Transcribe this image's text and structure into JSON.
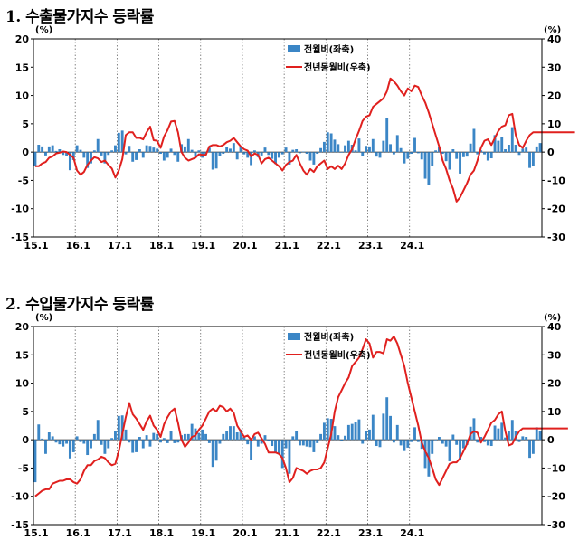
{
  "panels": [
    {
      "title": "1. 수출물가지수 등락률",
      "chart_data": {
        "type": "bar+line",
        "y_left_unit": "(%)",
        "y_right_unit": "(%)",
        "y_left_lim": [
          -15,
          20
        ],
        "y_right_lim": [
          -30,
          40
        ],
        "y_left_ticks": [
          20,
          15,
          10,
          5,
          0,
          -5,
          -10,
          -15
        ],
        "y_right_ticks": [
          40,
          30,
          20,
          10,
          0,
          -10,
          -20,
          -30
        ],
        "x_tick_labels": [
          "15.1",
          "16.1",
          "17.1",
          "18.1",
          "19.1",
          "20.1",
          "21.1",
          "22.1",
          "23.1",
          "24.1"
        ],
        "legend_placement": "top-center",
        "series": [
          {
            "name": "전월비(좌축)",
            "kind": "bar",
            "axis": "left",
            "color": "#3b86c6",
            "values": [
              -2.5,
              1.3,
              1.0,
              -0.6,
              1.0,
              1.2,
              0.2,
              0.5,
              -0.5,
              -0.7,
              -3.2,
              -1.4,
              1.2,
              0.4,
              -1.0,
              -2.8,
              -2.0,
              0.3,
              2.3,
              -0.6,
              -2.0,
              -0.5,
              0.3,
              1.2,
              3.4,
              3.8,
              -0.4,
              1.1,
              -1.7,
              -1.4,
              0.5,
              -1.0,
              1.2,
              1.1,
              0.8,
              0.6,
              -0.3,
              -1.5,
              -1.0,
              0.6,
              -0.5,
              -1.7,
              1.4,
              1.0,
              2.3,
              0.4,
              -0.9,
              0.3,
              -1.0,
              -0.5,
              0.8,
              -3.1,
              -2.9,
              -0.7,
              -0.3,
              0.9,
              0.6,
              1.6,
              -1.3,
              1.0,
              -0.4,
              -1.0,
              -2.3,
              0.3,
              -0.9,
              -0.6,
              0.8,
              -0.5,
              -1.2,
              -2.1,
              -1.0,
              -0.4,
              0.8,
              -2.2,
              0.4,
              0.5,
              -0.2,
              0.1,
              -0.3,
              -1.5,
              -2.2,
              -0.3,
              0.7,
              1.8,
              3.5,
              3.3,
              2.2,
              1.4,
              -0.1,
              1.2,
              2.0,
              1.3,
              0.3,
              2.4,
              -0.7,
              1.1,
              1.0,
              2.3,
              -0.8,
              -1.0,
              2.0,
              6.0,
              1.4,
              -0.4,
              3.0,
              0.7,
              -2.0,
              -1.2,
              -0.3,
              2.5,
              -0.2,
              -1.3,
              -4.7,
              -5.8,
              -2.4,
              0.3,
              0.9,
              -0.3,
              -1.6,
              -3.1,
              0.5,
              -1.2,
              -3.8,
              -0.9,
              -0.8,
              1.5,
              4.1,
              -0.4,
              0.3,
              -0.4,
              -1.5,
              -1.1,
              3.0,
              2.0,
              2.6,
              0.5,
              1.3,
              4.4,
              1.3,
              -0.5,
              0.6,
              0.8,
              -2.8,
              -2.4,
              1.0,
              1.6
            ]
          },
          {
            "name": "전년동월비(우축)",
            "kind": "line",
            "axis": "right",
            "color": "#e0201e",
            "values": [
              -5.0,
              -5.0,
              -4.0,
              -3.5,
              -2.0,
              -1.5,
              -0.5,
              -0.2,
              0.2,
              0.0,
              -1.0,
              -2.0,
              -6.5,
              -8.0,
              -7.0,
              -4.5,
              -3.0,
              -1.8,
              -2.2,
              -3.5,
              -3.0,
              -4.5,
              -5.8,
              -9.0,
              -6.5,
              -2.5,
              6.0,
              7.0,
              7.0,
              5.0,
              5.0,
              4.5,
              7.0,
              9.0,
              4.2,
              4.0,
              1.5,
              5.5,
              7.8,
              10.8,
              11.0,
              7.0,
              0.0,
              -2.0,
              -3.0,
              -2.5,
              -2.0,
              -0.8,
              -1.0,
              -1.0,
              2.0,
              2.5,
              2.5,
              2.0,
              2.5,
              3.5,
              4.0,
              5.0,
              3.5,
              2.0,
              1.0,
              0.5,
              -1.5,
              -0.5,
              -1.0,
              -4.0,
              -2.5,
              -2.0,
              -3.0,
              -4.0,
              -5.0,
              -6.5,
              -4.5,
              -3.5,
              -3.0,
              -1.0,
              -4.0,
              -6.5,
              -8.0,
              -6.0,
              -7.0,
              -5.0,
              -4.0,
              -3.0,
              -6.0,
              -5.0,
              -6.0,
              -4.8,
              -6.0,
              -4.0,
              -1.0,
              1.0,
              4.5,
              7.5,
              11.0,
              12.5,
              13.0,
              16.0,
              17.0,
              18.0,
              19.0,
              21.5,
              26.0,
              25.0,
              23.5,
              21.5,
              20.0,
              22.5,
              21.5,
              23.5,
              23.0,
              20.0,
              17.5,
              14.0,
              10.0,
              6.0,
              2.0,
              -3.0,
              -6.0,
              -10.0,
              -13.0,
              -17.5,
              -16.0,
              -13.5,
              -11.0,
              -8.0,
              -6.5,
              -3.0,
              1.5,
              4.0,
              4.5,
              2.5,
              5.0,
              7.5,
              9.0,
              9.5,
              13.0,
              13.5,
              6.0,
              2.5,
              1.5,
              4.0,
              6.0,
              7.0,
              7.0,
              7.0,
              7.0,
              7.0,
              7.0,
              7.0,
              7.0,
              7.0,
              7.0,
              7.0,
              7.0,
              7.0
            ]
          }
        ]
      }
    },
    {
      "title": "2. 수입물가지수 등락률",
      "chart_data": {
        "type": "bar+line",
        "y_left_unit": "(%)",
        "y_right_unit": "(%)",
        "y_left_lim": [
          -15,
          20
        ],
        "y_right_lim": [
          -30,
          40
        ],
        "y_left_ticks": [
          20,
          15,
          10,
          5,
          0,
          -5,
          -10,
          -15
        ],
        "y_right_ticks": [
          40,
          30,
          20,
          10,
          0,
          -10,
          -20,
          -30
        ],
        "x_tick_labels": [
          "15.1",
          "16.1",
          "17.1",
          "18.1",
          "19.1",
          "20.1",
          "21.1",
          "22.1",
          "23.1",
          "24.1"
        ],
        "legend_placement": "top-center",
        "series": [
          {
            "name": "전월비(좌축)",
            "kind": "bar",
            "axis": "left",
            "color": "#3b86c6",
            "values": [
              -7.5,
              2.7,
              0.2,
              -2.5,
              1.3,
              0.6,
              -0.5,
              -0.8,
              -1.2,
              -0.7,
              -3.3,
              -2.2,
              0.6,
              -0.4,
              -0.7,
              -2.7,
              -1.5,
              1.0,
              3.5,
              -0.9,
              -2.5,
              -1.5,
              0.3,
              1.5,
              4.2,
              4.3,
              1.8,
              -0.5,
              -2.3,
              -2.2,
              0.5,
              -1.5,
              0.8,
              -1.2,
              1.2,
              1.0,
              -0.5,
              0.3,
              -0.6,
              1.5,
              -0.6,
              -0.5,
              0.8,
              1.0,
              1.0,
              2.8,
              2.0,
              1.2,
              1.8,
              1.0,
              -0.6,
              -4.8,
              -3.7,
              -0.7,
              1.0,
              1.5,
              2.4,
              2.4,
              1.3,
              1.8,
              0.5,
              -0.8,
              -3.6,
              0.6,
              -1.2,
              -0.7,
              0.8,
              -0.3,
              -1.1,
              -2.2,
              -2.6,
              -5.0,
              -1.5,
              -6.0,
              0.6,
              1.5,
              -1.0,
              -1.0,
              -1.2,
              -1.3,
              -2.2,
              -0.6,
              1.0,
              3.0,
              3.8,
              3.7,
              2.4,
              0.8,
              -0.2,
              0.7,
              2.6,
              2.8,
              3.2,
              3.6,
              -0.7,
              1.5,
              1.8,
              4.4,
              -1.1,
              -1.3,
              4.6,
              7.5,
              4.2,
              -0.5,
              2.6,
              -1.0,
              -2.0,
              -1.4,
              -0.4,
              2.2,
              -0.4,
              -1.6,
              -5.0,
              -6.5,
              -2.5,
              0.0,
              0.5,
              -0.7,
              -1.2,
              -3.8,
              0.9,
              -0.9,
              -3.5,
              -1.5,
              -0.9,
              2.3,
              3.8,
              -0.5,
              0.5,
              -0.4,
              -1.0,
              -1.1,
              2.5,
              2.0,
              3.0,
              0.4,
              1.5,
              3.5,
              1.5,
              -0.4,
              0.6,
              0.5,
              -3.2,
              -2.5,
              2.2,
              1.6
            ]
          },
          {
            "name": "전년동월비(우축)",
            "kind": "line",
            "axis": "right",
            "color": "#e0201e",
            "values": [
              -20.0,
              -19.0,
              -18.0,
              -17.5,
              -17.5,
              -15.5,
              -15.0,
              -14.5,
              -14.5,
              -14.0,
              -14.0,
              -15.0,
              -15.5,
              -14.0,
              -11.0,
              -9.0,
              -9.0,
              -7.5,
              -7.0,
              -6.0,
              -6.5,
              -8.0,
              -9.0,
              -8.5,
              -4.0,
              2.0,
              8.0,
              13.0,
              9.0,
              7.5,
              5.5,
              3.5,
              6.5,
              8.5,
              5.0,
              3.5,
              1.0,
              5.5,
              8.0,
              10.0,
              11.0,
              6.0,
              0.0,
              -2.5,
              -1.0,
              1.0,
              1.5,
              3.5,
              5.0,
              7.5,
              10.0,
              11.0,
              10.0,
              12.0,
              11.5,
              10.0,
              11.0,
              9.5,
              5.0,
              3.0,
              1.0,
              1.5,
              0.0,
              2.0,
              2.5,
              0.5,
              -1.5,
              -4.5,
              -4.5,
              -4.5,
              -5.0,
              -6.5,
              -10.0,
              -15.0,
              -13.5,
              -10.0,
              -10.5,
              -11.0,
              -12.0,
              -11.0,
              -10.5,
              -10.5,
              -10.0,
              -8.0,
              -3.0,
              2.0,
              10.0,
              15.0,
              17.5,
              20.0,
              22.0,
              26.0,
              27.5,
              29.0,
              32.0,
              35.5,
              34.0,
              29.0,
              31.0,
              31.0,
              30.5,
              35.5,
              35.0,
              36.5,
              34.0,
              30.0,
              26.0,
              20.0,
              15.0,
              10.0,
              5.0,
              -1.0,
              -4.0,
              -6.5,
              -10.0,
              -14.0,
              -16.0,
              -13.5,
              -11.0,
              -8.5,
              -8.0,
              -8.0,
              -6.5,
              -4.0,
              -1.5,
              2.0,
              3.0,
              2.5,
              -1.0,
              1.0,
              3.5,
              6.0,
              7.0,
              9.0,
              10.0,
              3.0,
              -2.0,
              -1.5,
              1.0,
              3.0,
              4.0,
              4.0,
              4.0,
              4.0,
              4.0,
              4.0,
              4.0,
              4.0,
              4.0,
              4.0,
              4.0,
              4.0,
              4.0,
              4.0
            ]
          }
        ]
      }
    }
  ]
}
